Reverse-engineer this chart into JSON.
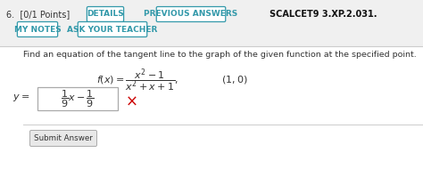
{
  "problem_num": "6.  [0/1 Points]",
  "btn1": "DETAILS",
  "btn2": "PREVIOUS ANSWERS",
  "ref": "SCALCET9 3.XP.2.031.",
  "btn3": "MY NOTES",
  "btn4": "ASK YOUR TEACHER",
  "instruction": "Find an equation of the tangent line to the graph of the given function at the specified point.",
  "bg_top": "#f0f0f0",
  "bg_bottom": "#ffffff",
  "white_bg": "#ffffff",
  "btn_border": "#3399aa",
  "btn_text_color": "#3399aa",
  "black_text": "#333333",
  "bold_text": "#111111",
  "red_x_color": "#cc0000",
  "submit_text": "Submit Answer",
  "sep_color": "#cccccc"
}
